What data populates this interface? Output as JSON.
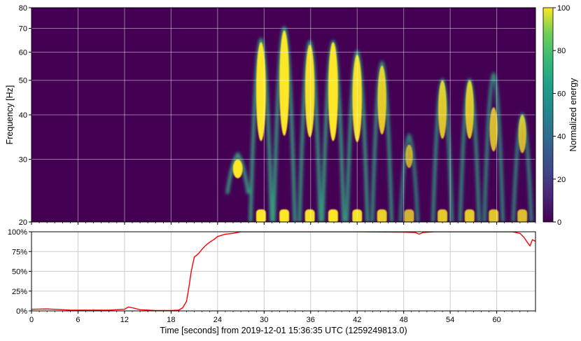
{
  "chart_data": [
    {
      "type": "heatmap",
      "ylabel": "Frequency [Hz]",
      "yscale": "log",
      "ylim": [
        20,
        80
      ],
      "xlim": [
        0,
        65
      ],
      "yticks": [
        20,
        30,
        40,
        50,
        60,
        70,
        80
      ],
      "ytick_labels": [
        "20",
        "30",
        "40",
        "50",
        "60",
        "70",
        "80"
      ],
      "grid": true,
      "background_color": "#440154",
      "features": [
        {
          "t": 26.6,
          "f_low": 24,
          "f_high": 31,
          "peak_f": 30,
          "intensity": 1.0
        },
        {
          "t": 29.6,
          "f_low": 20,
          "f_high": 65,
          "peak_f": 64,
          "intensity": 1.0
        },
        {
          "t": 32.6,
          "f_low": 20,
          "f_high": 70,
          "peak_f": 69,
          "intensity": 1.0
        },
        {
          "t": 35.9,
          "f_low": 20,
          "f_high": 64,
          "peak_f": 63,
          "intensity": 0.95
        },
        {
          "t": 38.9,
          "f_low": 20,
          "f_high": 64,
          "peak_f": 64,
          "intensity": 1.0
        },
        {
          "t": 42.0,
          "f_low": 20,
          "f_high": 60,
          "peak_f": 59,
          "intensity": 0.95
        },
        {
          "t": 45.2,
          "f_low": 20,
          "f_high": 56,
          "peak_f": 55,
          "intensity": 0.8
        },
        {
          "t": 48.7,
          "f_low": 20,
          "f_high": 35,
          "peak_f": 33,
          "intensity": 0.55
        },
        {
          "t": 53.0,
          "f_low": 20,
          "f_high": 50,
          "peak_f": 50,
          "intensity": 0.75
        },
        {
          "t": 56.5,
          "f_low": 20,
          "f_high": 50,
          "peak_f": 50,
          "intensity": 0.75
        },
        {
          "t": 59.6,
          "f_low": 20,
          "f_high": 52,
          "peak_f": 42,
          "intensity": 0.7
        },
        {
          "t": 63.3,
          "f_low": 20,
          "f_high": 40,
          "peak_f": 40,
          "intensity": 0.65
        }
      ],
      "colorbar": {
        "label": "Normalized energy",
        "min": 0,
        "max": 100,
        "ticks": [
          0,
          20,
          40,
          60,
          80,
          100
        ],
        "tick_labels": [
          "0",
          "20",
          "40",
          "60",
          "80",
          "100"
        ],
        "colormap": "viridis"
      }
    },
    {
      "type": "line",
      "xlabel": "Time [seconds] from 2019-12-01 15:36:35 UTC (1259249813.0)",
      "ylabel": "",
      "xlim": [
        0,
        65
      ],
      "ylim": [
        0,
        100
      ],
      "xticks": [
        0,
        6,
        12,
        18,
        24,
        30,
        36,
        42,
        48,
        54,
        60
      ],
      "xtick_labels": [
        "0",
        "6",
        "12",
        "18",
        "24",
        "30",
        "36",
        "42",
        "48",
        "54",
        "60"
      ],
      "yticks": [
        0,
        25,
        50,
        75,
        100
      ],
      "ytick_labels": [
        "0%",
        "25%",
        "50%",
        "75%",
        "100%"
      ],
      "grid": true,
      "series": [
        {
          "color": "#ff0000",
          "x": [
            0,
            2,
            4,
            5,
            6,
            8,
            10,
            12,
            12.5,
            13,
            14,
            16,
            18,
            19,
            19.5,
            20,
            20.3,
            20.6,
            21,
            21.5,
            22,
            22.5,
            23,
            23.5,
            24,
            25,
            26,
            27,
            28,
            30,
            36,
            42,
            48,
            49.5,
            50,
            50.5,
            52,
            56,
            60,
            62,
            63,
            63.5,
            64,
            64.3,
            64.6,
            65
          ],
          "y": [
            2,
            2.5,
            1.5,
            1,
            1,
            1,
            1,
            2,
            5,
            4,
            1.5,
            0.5,
            0.5,
            1,
            4,
            12,
            30,
            50,
            68,
            72,
            78,
            83,
            87,
            90,
            94,
            97,
            98,
            100,
            100,
            100,
            100,
            100,
            99.5,
            99,
            97,
            99,
            100,
            100,
            100,
            100,
            98,
            93,
            86,
            82,
            90,
            88
          ]
        }
      ]
    }
  ]
}
